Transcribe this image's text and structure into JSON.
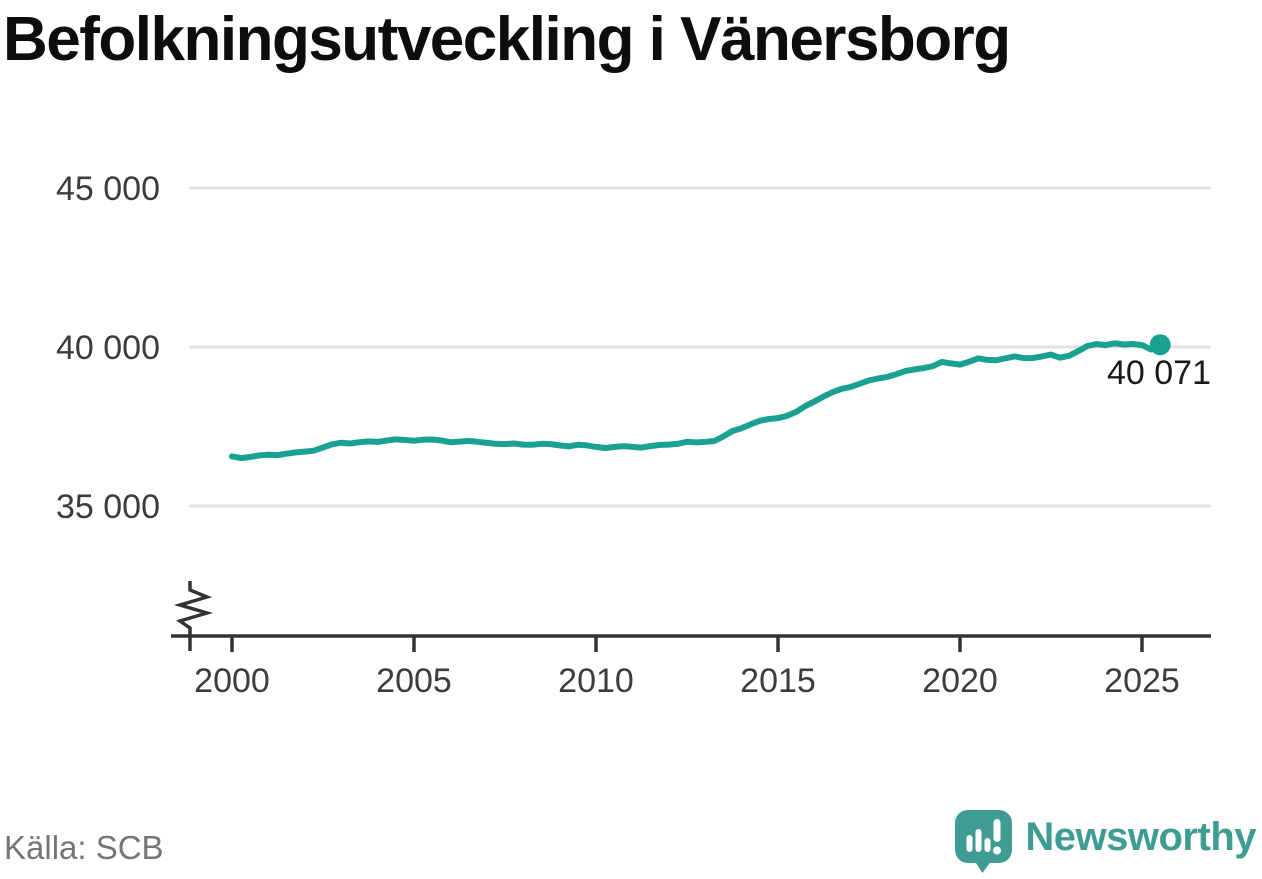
{
  "header": {
    "title": "Befolkningsutveckling i Vänersborg"
  },
  "footer": {
    "source": "Källa: SCB",
    "logo_text": "Newsworthy"
  },
  "colors": {
    "line": "#1aa191",
    "grid": "#e2e2e2",
    "axis": "#333333",
    "tick_label": "#3c3c3c",
    "title": "#0d0d0d",
    "annotation": "#1a1a1a",
    "source": "#757575",
    "logo": "#3f9c92"
  },
  "chart_data": {
    "type": "line",
    "title": "Befolkningsutveckling i Vänersborg",
    "xlabel": "",
    "ylabel": "",
    "grid": "horizontal-only",
    "legend": "none",
    "axis_break_bottom_left": true,
    "xlim": [
      1999.3,
      2026.8
    ],
    "ylim_visible_ticks": [
      35000,
      45000
    ],
    "yticks": [
      {
        "value": 45000,
        "label": "45 000"
      },
      {
        "value": 40000,
        "label": "40 000"
      },
      {
        "value": 35000,
        "label": "35 000"
      }
    ],
    "xticks": [
      {
        "value": 2000,
        "label": "2000"
      },
      {
        "value": 2005,
        "label": "2005"
      },
      {
        "value": 2010,
        "label": "2010"
      },
      {
        "value": 2015,
        "label": "2015"
      },
      {
        "value": 2020,
        "label": "2020"
      },
      {
        "value": 2025,
        "label": "2025"
      }
    ],
    "end_label": "40 071",
    "end_value": 40071,
    "x": [
      2000.0,
      2000.25,
      2000.5,
      2000.75,
      2001.0,
      2001.25,
      2001.5,
      2001.75,
      2002.0,
      2002.25,
      2002.5,
      2002.75,
      2003.0,
      2003.25,
      2003.5,
      2003.75,
      2004.0,
      2004.25,
      2004.5,
      2004.75,
      2005.0,
      2005.25,
      2005.5,
      2005.75,
      2006.0,
      2006.25,
      2006.5,
      2006.75,
      2007.0,
      2007.25,
      2007.5,
      2007.75,
      2008.0,
      2008.25,
      2008.5,
      2008.75,
      2009.0,
      2009.25,
      2009.5,
      2009.75,
      2010.0,
      2010.25,
      2010.5,
      2010.75,
      2011.0,
      2011.25,
      2011.5,
      2011.75,
      2012.0,
      2012.25,
      2012.5,
      2012.75,
      2013.0,
      2013.25,
      2013.5,
      2013.75,
      2014.0,
      2014.25,
      2014.5,
      2014.75,
      2015.0,
      2015.25,
      2015.5,
      2015.75,
      2016.0,
      2016.25,
      2016.5,
      2016.75,
      2017.0,
      2017.25,
      2017.5,
      2017.75,
      2018.0,
      2018.25,
      2018.5,
      2018.75,
      2019.0,
      2019.25,
      2019.5,
      2019.75,
      2020.0,
      2020.25,
      2020.5,
      2020.75,
      2021.0,
      2021.25,
      2021.5,
      2021.75,
      2022.0,
      2022.25,
      2022.5,
      2022.75,
      2023.0,
      2023.25,
      2023.5,
      2023.75,
      2024.0,
      2024.25,
      2024.5,
      2024.75,
      2025.0,
      2025.25,
      2025.5
    ],
    "values": [
      36560,
      36505,
      36540,
      36590,
      36610,
      36600,
      36645,
      36685,
      36710,
      36740,
      36840,
      36940,
      36990,
      36965,
      37005,
      37030,
      37015,
      37060,
      37095,
      37075,
      37050,
      37085,
      37090,
      37060,
      37005,
      37025,
      37045,
      37020,
      36985,
      36955,
      36945,
      36965,
      36930,
      36925,
      36955,
      36945,
      36905,
      36875,
      36925,
      36905,
      36860,
      36825,
      36855,
      36885,
      36860,
      36835,
      36885,
      36920,
      36930,
      36955,
      37020,
      37000,
      37015,
      37045,
      37190,
      37360,
      37445,
      37570,
      37680,
      37735,
      37765,
      37835,
      37960,
      38140,
      38290,
      38440,
      38580,
      38685,
      38745,
      38845,
      38950,
      39010,
      39060,
      39145,
      39245,
      39295,
      39335,
      39395,
      39530,
      39485,
      39445,
      39535,
      39645,
      39595,
      39585,
      39645,
      39705,
      39650,
      39655,
      39705,
      39760,
      39665,
      39725,
      39870,
      40030,
      40090,
      40060,
      40115,
      40080,
      40095,
      40060,
      39920,
      40071
    ]
  }
}
